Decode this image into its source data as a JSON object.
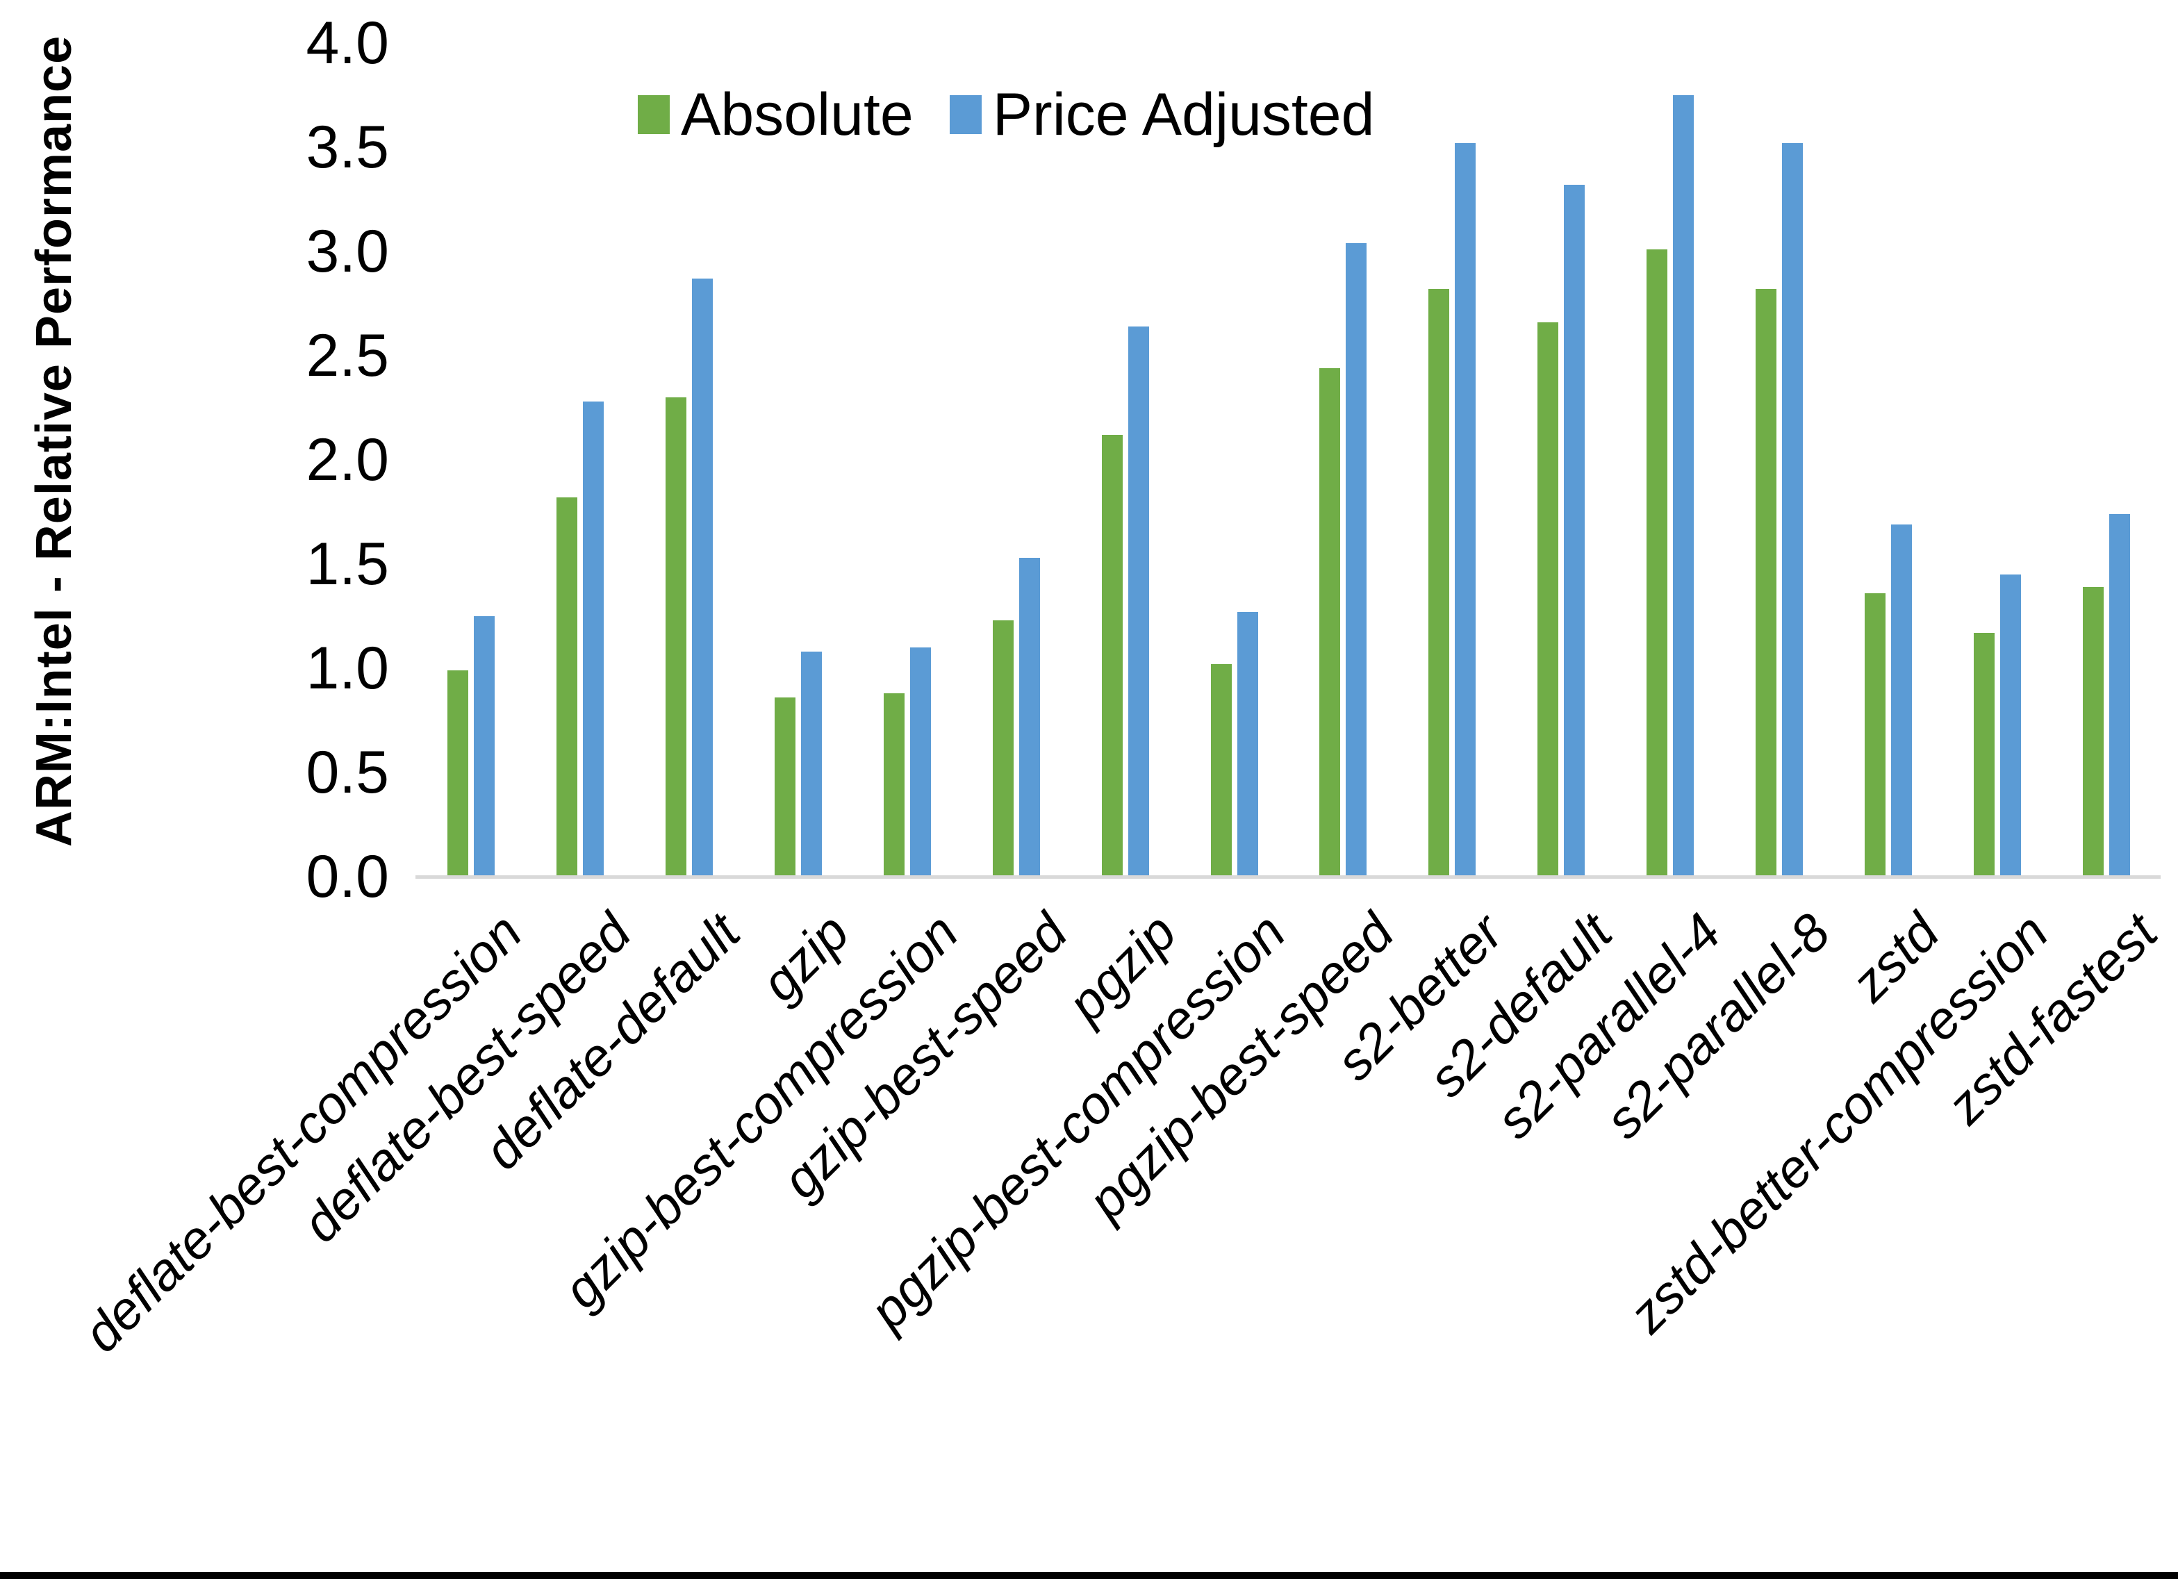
{
  "chart_data": {
    "type": "bar",
    "title": "",
    "xlabel": "",
    "ylabel": "ARM:Intel - Relative Performance",
    "ylim": [
      0.0,
      4.0
    ],
    "ytick_step": 0.5,
    "y_ticks": [
      "4.0",
      "3.5",
      "3.0",
      "2.5",
      "2.0",
      "1.5",
      "1.0",
      "0.5",
      "0.0"
    ],
    "grid": false,
    "legend_position": "top",
    "categories": [
      "deflate-best-compression",
      "deflate-best-speed",
      "deflate-default",
      "gzip",
      "gzip-best-compression",
      "gzip-best-speed",
      "pgzip",
      "pgzip-best-compression",
      "pgzip-best-speed",
      "s2-better",
      "s2-default",
      "s2-parallel-4",
      "s2-parallel-8",
      "zstd",
      "zstd-better-compression",
      "zstd-fastest"
    ],
    "series": [
      {
        "name": "Absolute",
        "color": "#70AD47",
        "values": [
          0.99,
          1.82,
          2.3,
          0.86,
          0.88,
          1.23,
          2.12,
          1.02,
          2.44,
          2.82,
          2.66,
          3.01,
          2.82,
          1.36,
          1.17,
          1.39
        ]
      },
      {
        "name": "Price Adjusted",
        "color": "#5B9BD5",
        "values": [
          1.25,
          2.28,
          2.87,
          1.08,
          1.1,
          1.53,
          2.64,
          1.27,
          3.04,
          3.52,
          3.32,
          3.75,
          3.52,
          1.69,
          1.45,
          1.74
        ]
      }
    ]
  },
  "colors": {
    "axis_line": "#D9D9D9",
    "background": "#FFFFFF",
    "text": "#000000",
    "bottom_border": "#000000"
  }
}
